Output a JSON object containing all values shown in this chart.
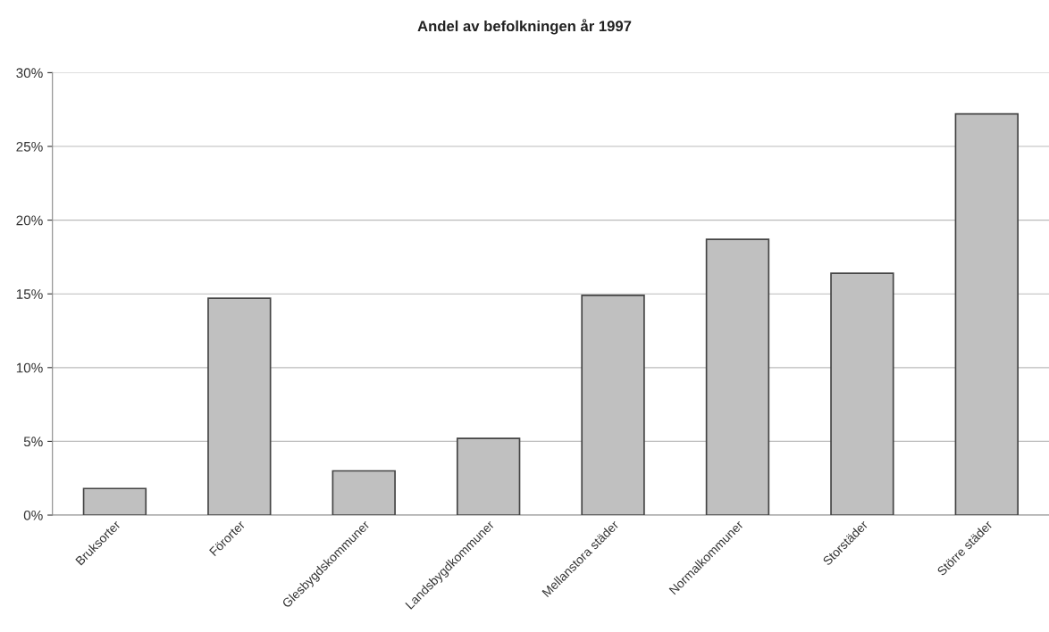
{
  "chart_data": {
    "type": "bar",
    "title": "Andel av befolkningen år 1997",
    "categories": [
      "Bruksorter",
      "Förorter",
      "Glesbygdskommuner",
      "Landsbygdkommuner",
      "Mellanstora städer",
      "Normalkommuner",
      "Storstäder",
      "Större städer"
    ],
    "values": [
      1.8,
      14.7,
      3.0,
      5.2,
      14.9,
      18.7,
      16.4,
      27.2
    ],
    "color": "#c0c0c0",
    "ylim": [
      0,
      30
    ],
    "yticks": [
      {
        "value": 0,
        "label": "0%"
      },
      {
        "value": 5,
        "label": "5%"
      },
      {
        "value": 10,
        "label": "10%"
      },
      {
        "value": 15,
        "label": "15%"
      },
      {
        "value": 20,
        "label": "20%"
      },
      {
        "value": 25,
        "label": "25%"
      },
      {
        "value": 30,
        "label": "30%"
      }
    ],
    "grid": "y",
    "legend": false
  }
}
